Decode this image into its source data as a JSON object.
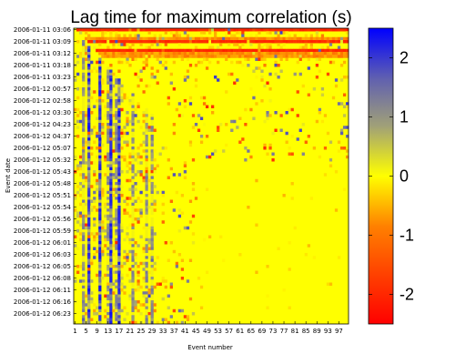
{
  "chart_data": {
    "type": "heatmap",
    "title": "Lag time for maximum correlation (s)",
    "xlabel": "Event number",
    "ylabel": "Event date",
    "n_events": 100,
    "x_ticks": [
      1,
      5,
      9,
      13,
      17,
      21,
      25,
      29,
      33,
      37,
      41,
      45,
      49,
      53,
      57,
      61,
      65,
      69,
      73,
      77,
      81,
      85,
      89,
      93,
      97
    ],
    "y_ticks": [
      "2006-01-11 03:06",
      "2006-01-11 03:09",
      "2006-01-11 03:12",
      "2006-01-11 03:18",
      "2006-01-11 03:23",
      "2006-01-12 00:57",
      "2006-01-12 02:58",
      "2006-01-12 03:30",
      "2006-01-12 04:23",
      "2006-01-12 04:37",
      "2006-01-12 05:07",
      "2006-01-12 05:32",
      "2006-01-12 05:43",
      "2006-01-12 05:48",
      "2006-01-12 05:51",
      "2006-01-12 05:54",
      "2006-01-12 05:56",
      "2006-01-12 05:59",
      "2006-01-12 06:01",
      "2006-01-12 06:03",
      "2006-01-12 06:05",
      "2006-01-12 06:08",
      "2006-01-12 06:11",
      "2006-01-12 06:16",
      "2006-01-12 06:23"
    ],
    "colorbar": {
      "range": [
        -2.5,
        2.5
      ],
      "ticks": [
        2,
        1,
        0,
        -1,
        -2
      ],
      "tick_labels": [
        "2",
        "1",
        "0",
        "-1",
        "-2"
      ],
      "stops": [
        {
          "v": -2.5,
          "color": "#ff0000"
        },
        {
          "v": -0.833,
          "color": "#ff8000"
        },
        {
          "v": 0,
          "color": "#ffff00"
        },
        {
          "v": 0.833,
          "color": "#a0a078"
        },
        {
          "v": 1.667,
          "color": "#6060b0"
        },
        {
          "v": 2.5,
          "color": "#0000ff"
        }
      ]
    },
    "background_value": 0,
    "red_rows": [
      0,
      4,
      7
    ],
    "orange_rows": [
      3,
      8,
      9,
      12,
      13,
      14,
      18
    ],
    "blue_cols": [
      5,
      9,
      13,
      16
    ],
    "gray_cols": [
      3,
      12,
      15,
      21,
      26,
      28
    ],
    "near_diag_random_seed": 7
  }
}
